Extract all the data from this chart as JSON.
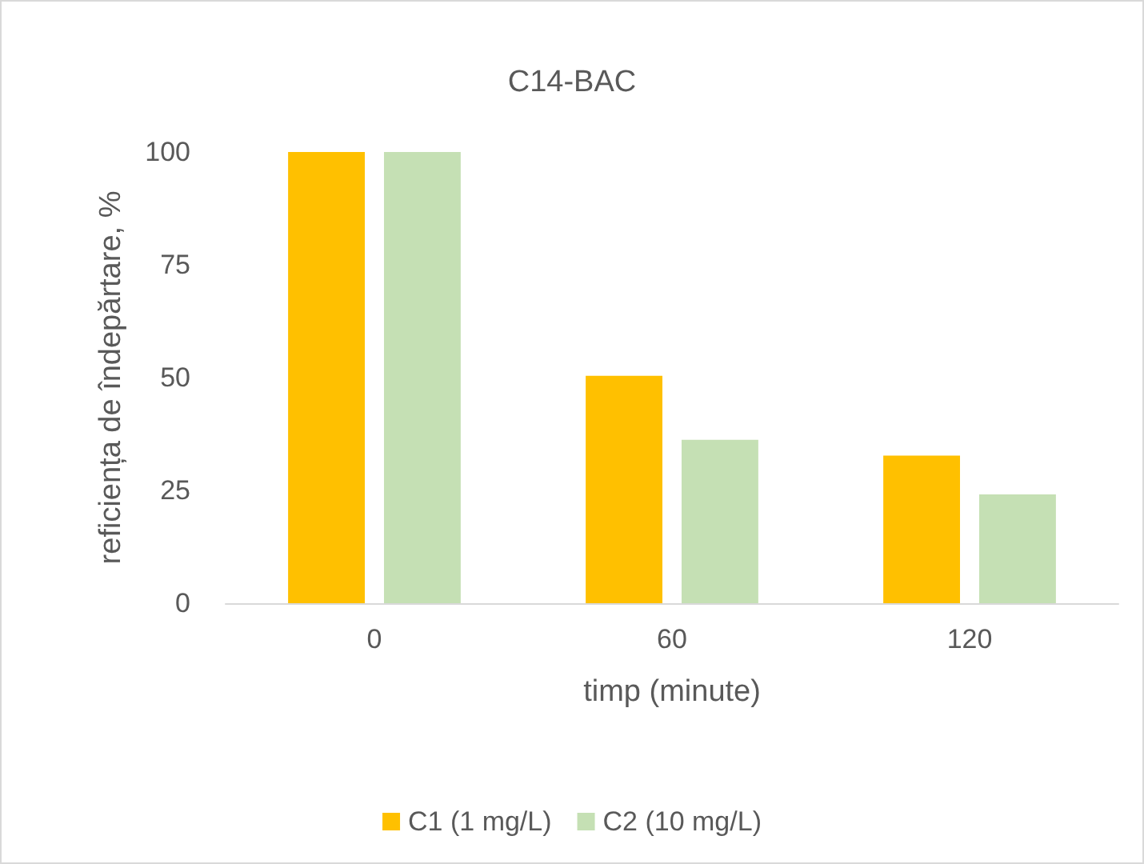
{
  "chart_data": {
    "type": "bar",
    "title": "C14-BAC",
    "xlabel": "timp (minute)",
    "ylabel": "reficiența de îndepărtare, %",
    "categories": [
      "0",
      "60",
      "120"
    ],
    "series": [
      {
        "name": "C1 (1 mg/L)",
        "color": "#ffc000",
        "values": [
          100,
          50.4,
          32.7
        ]
      },
      {
        "name": "C2 (10 mg/L)",
        "color": "#c5e0b4",
        "values": [
          100,
          36.2,
          24.1
        ]
      }
    ],
    "ylim": [
      0,
      100
    ],
    "yticks": [
      0,
      25,
      50,
      75,
      100
    ],
    "grid": false,
    "legend": "bottom"
  }
}
